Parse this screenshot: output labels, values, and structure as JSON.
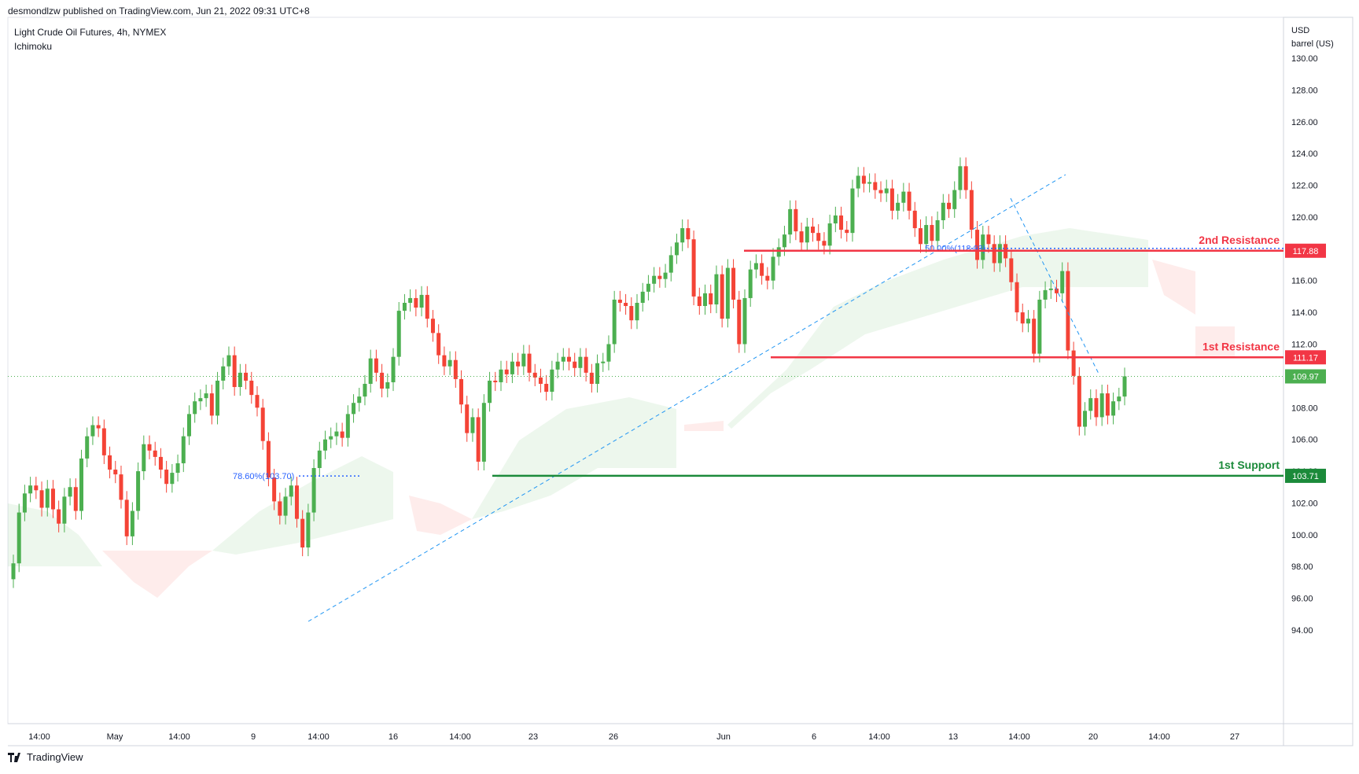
{
  "header": {
    "published": "desmondlzw published on TradingView.com, Jun 21, 2022 09:31 UTC+8",
    "symbol": "Light Crude Oil Futures, 4h, NYMEX",
    "indicator": "Ichimoku"
  },
  "footer": {
    "brand": "TradingView"
  },
  "colors": {
    "up": "#26a69a",
    "down": "#ef5350",
    "candle_up": "#4caf50",
    "candle_down": "#f44336",
    "resistance": "#f23645",
    "support": "#1b8a3a",
    "fib": "#2962ff",
    "trend": "#2196f3"
  },
  "chart_data": {
    "type": "candlestick",
    "price_axis": {
      "unit_line1": "USD",
      "unit_line2": "barrel (US)",
      "ticks": [
        "130.00",
        "128.00",
        "126.00",
        "124.00",
        "122.00",
        "120.00",
        "118.00",
        "116.00",
        "114.00",
        "112.00",
        "110.00",
        "108.00",
        "106.00",
        "104.00",
        "102.00",
        "100.00",
        "98.00",
        "96.00",
        "94.00"
      ],
      "ylim": [
        92,
        131
      ]
    },
    "time_axis": {
      "labels": [
        "14:00",
        "May",
        "14:00",
        "9",
        "14:00",
        "16",
        "14:00",
        "23",
        "26",
        "Jun",
        "6",
        "14:00",
        "13",
        "14:00",
        "20",
        "14:00",
        "27"
      ]
    },
    "current_price": 109.97,
    "levels": [
      {
        "name": "2nd Resistance",
        "value": 117.88,
        "label": "117.88"
      },
      {
        "name": "1st Resistance",
        "value": 111.17,
        "label": "111.17"
      },
      {
        "name": "1st Support",
        "value": 103.71,
        "label": "103.71"
      }
    ],
    "fib_labels": [
      {
        "text": "78.60%(103.70)",
        "value": 103.7
      },
      {
        "text": "50.00%(118.03)",
        "value": 118.03
      }
    ],
    "closes": [
      98.2,
      101.4,
      102.6,
      103.1,
      102.8,
      101.7,
      102.9,
      101.6,
      100.7,
      102.4,
      103.0,
      101.5,
      104.8,
      106.2,
      106.9,
      106.7,
      105.0,
      104.1,
      103.8,
      102.2,
      99.9,
      101.5,
      104.0,
      105.7,
      105.3,
      104.9,
      104.1,
      103.2,
      103.9,
      104.5,
      106.2,
      107.6,
      108.4,
      108.6,
      108.9,
      107.5,
      109.7,
      110.6,
      111.3,
      109.3,
      110.2,
      109.7,
      108.8,
      108.0,
      105.9,
      103.6,
      102.1,
      101.2,
      102.4,
      103.1,
      101.0,
      99.2,
      101.4,
      104.2,
      105.3,
      106.0,
      106.2,
      106.5,
      106.1,
      107.6,
      108.3,
      108.7,
      109.5,
      111.1,
      110.2,
      109.2,
      109.6,
      111.2,
      114.1,
      114.6,
      114.9,
      114.3,
      115.1,
      113.6,
      112.7,
      111.3,
      110.6,
      111.0,
      109.8,
      108.2,
      106.4,
      107.4,
      104.6,
      108.3,
      109.7,
      109.6,
      110.4,
      110.1,
      110.9,
      110.6,
      111.4,
      110.2,
      109.9,
      109.5,
      109.0,
      110.4,
      110.9,
      111.2,
      110.9,
      110.5,
      111.2,
      110.2,
      109.5,
      110.8,
      110.9,
      112.0,
      114.8,
      114.6,
      114.4,
      113.5,
      114.6,
      115.3,
      115.8,
      116.3,
      116.1,
      116.5,
      117.6,
      118.4,
      119.3,
      118.6,
      115.0,
      114.4,
      115.2,
      114.5,
      116.4,
      113.6,
      116.8,
      114.8,
      112.0,
      114.9,
      116.7,
      117.1,
      116.3,
      116.0,
      117.5,
      118.1,
      118.9,
      120.5,
      119.1,
      118.4,
      119.4,
      119.0,
      118.5,
      118.2,
      119.6,
      120.1,
      119.2,
      119.0,
      121.8,
      122.6,
      122.1,
      122.2,
      121.7,
      121.5,
      121.8,
      120.4,
      120.9,
      121.6,
      120.4,
      119.3,
      118.3,
      119.5,
      118.5,
      119.8,
      120.9,
      120.5,
      121.7,
      123.2,
      121.7,
      119.2,
      117.3,
      118.9,
      118.3,
      117.1,
      118.3,
      117.4,
      115.9,
      114.0,
      113.3,
      113.6,
      111.4,
      114.8,
      115.4,
      115.5,
      115.2,
      116.6,
      111.6,
      110.0,
      106.8,
      107.8,
      108.6,
      107.4,
      108.9,
      107.5,
      108.4,
      108.7,
      109.97
    ]
  }
}
